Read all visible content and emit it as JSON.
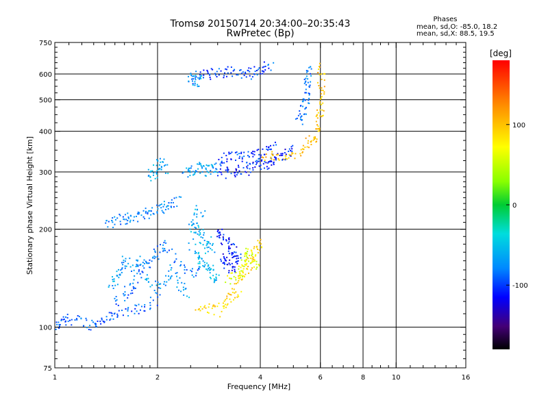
{
  "chart_data": {
    "type": "scatter",
    "title": "Tromsø 20150714 20:34:00–20:35:43",
    "subtitle": "RwPretec (Bp)",
    "phases": {
      "heading": "Phases",
      "line1": "mean, sd,O: -85.0, 18.2",
      "line2": "mean, sd,X:  88.5, 19.5"
    },
    "xlabel": "Frequency [MHz]",
    "ylabel": "Stationary phase Virtual Height [km]",
    "x_scale": "log",
    "y_scale": "log",
    "xlim": [
      1,
      16
    ],
    "ylim": [
      75,
      750
    ],
    "xticks": [
      1,
      2,
      4,
      6,
      8,
      10,
      16
    ],
    "xtick_labels": [
      "1",
      "2",
      "4",
      "6",
      "8",
      "10",
      "16"
    ],
    "yticks": [
      75,
      100,
      200,
      300,
      400,
      500,
      600,
      750
    ],
    "ytick_labels": [
      "75",
      "100",
      "200",
      "300",
      "400",
      "500",
      "600",
      "750"
    ],
    "x_grid": [
      2,
      4,
      6,
      8,
      10
    ],
    "y_grid": [
      100,
      200,
      300,
      400,
      500,
      600
    ],
    "colorbar": {
      "label": "[deg]",
      "range": [
        -180,
        180
      ],
      "ticks": [
        100,
        0,
        -100
      ],
      "tick_labels": [
        "100",
        "0",
        "-100"
      ]
    },
    "echo_traces": [
      {
        "phase": -90,
        "points": [
          [
            1.0,
            100
          ],
          [
            1.05,
            103
          ],
          [
            1.1,
            106
          ],
          [
            1.2,
            104
          ],
          [
            1.28,
            102
          ],
          [
            1.35,
            104
          ],
          [
            1.45,
            108
          ],
          [
            1.55,
            109
          ],
          [
            1.7,
            112
          ],
          [
            1.85,
            116
          ],
          [
            2.0,
            120
          ]
        ]
      },
      {
        "phase": -85,
        "points": [
          [
            1.5,
            118
          ],
          [
            1.6,
            125
          ],
          [
            1.7,
            135
          ],
          [
            1.8,
            148
          ],
          [
            1.9,
            160
          ],
          [
            2.0,
            170
          ],
          [
            2.1,
            180
          ],
          [
            2.3,
            160
          ],
          [
            2.5,
            145
          ],
          [
            2.7,
            150
          ]
        ]
      },
      {
        "phase": -70,
        "points": [
          [
            1.45,
            135
          ],
          [
            1.5,
            140
          ],
          [
            1.55,
            148
          ],
          [
            1.6,
            160
          ],
          [
            1.7,
            150
          ],
          [
            1.8,
            165
          ],
          [
            1.9,
            140
          ],
          [
            2.0,
            130
          ],
          [
            2.1,
            140
          ],
          [
            2.2,
            150
          ],
          [
            2.35,
            135
          ],
          [
            2.5,
            125
          ]
        ]
      },
      {
        "phase": -80,
        "points": [
          [
            1.4,
            205
          ],
          [
            1.5,
            212
          ],
          [
            1.6,
            215
          ],
          [
            1.65,
            218
          ],
          [
            1.8,
            218
          ],
          [
            1.9,
            225
          ],
          [
            2.0,
            230
          ],
          [
            2.1,
            235
          ],
          [
            2.2,
            240
          ],
          [
            2.3,
            248
          ]
        ]
      },
      {
        "phase": -60,
        "points": [
          [
            2.5,
            210
          ],
          [
            2.6,
            200
          ],
          [
            2.7,
            190
          ],
          [
            2.8,
            185
          ],
          [
            2.9,
            175
          ],
          [
            2.6,
            170
          ],
          [
            2.7,
            160
          ],
          [
            2.8,
            150
          ],
          [
            2.9,
            145
          ],
          [
            3.0,
            140
          ],
          [
            2.5,
            180
          ],
          [
            2.6,
            230
          ],
          [
            2.7,
            220
          ]
        ]
      },
      {
        "phase": -110,
        "points": [
          [
            3.0,
            200
          ],
          [
            3.1,
            190
          ],
          [
            3.2,
            180
          ],
          [
            3.3,
            175
          ],
          [
            3.4,
            170
          ],
          [
            3.1,
            160
          ],
          [
            3.2,
            155
          ],
          [
            3.3,
            150
          ],
          [
            3.4,
            165
          ],
          [
            3.5,
            160
          ]
        ]
      },
      {
        "phase": 90,
        "points": [
          [
            2.6,
            112
          ],
          [
            2.8,
            115
          ],
          [
            3.0,
            112
          ],
          [
            3.2,
            118
          ],
          [
            3.3,
            125
          ],
          [
            3.4,
            130
          ],
          [
            3.5,
            140
          ],
          [
            3.6,
            150
          ],
          [
            3.7,
            155
          ],
          [
            3.8,
            165
          ],
          [
            3.9,
            175
          ],
          [
            4.0,
            185
          ]
        ]
      },
      {
        "phase": 60,
        "points": [
          [
            3.2,
            140
          ],
          [
            3.4,
            145
          ],
          [
            3.5,
            150
          ],
          [
            3.6,
            160
          ],
          [
            3.7,
            170
          ],
          [
            3.8,
            160
          ],
          [
            3.9,
            150
          ]
        ]
      },
      {
        "phase": -65,
        "points": [
          [
            1.9,
            290
          ],
          [
            1.95,
            300
          ],
          [
            2.0,
            310
          ],
          [
            2.05,
            320
          ],
          [
            2.1,
            300
          ]
        ]
      },
      {
        "phase": -70,
        "points": [
          [
            2.4,
            295
          ],
          [
            2.5,
            300
          ],
          [
            2.6,
            305
          ],
          [
            2.7,
            310
          ],
          [
            2.8,
            300
          ],
          [
            2.9,
            310
          ],
          [
            3.0,
            305
          ]
        ]
      },
      {
        "phase": -110,
        "points": [
          [
            3.0,
            295
          ],
          [
            3.2,
            300
          ],
          [
            3.4,
            302
          ],
          [
            3.6,
            305
          ],
          [
            3.8,
            308
          ],
          [
            4.0,
            312
          ],
          [
            4.2,
            318
          ],
          [
            4.4,
            325
          ],
          [
            4.6,
            335
          ],
          [
            4.8,
            345
          ],
          [
            5.0,
            355
          ]
        ]
      },
      {
        "phase": -100,
        "points": [
          [
            3.0,
            320
          ],
          [
            3.2,
            330
          ],
          [
            3.4,
            340
          ],
          [
            3.6,
            330
          ],
          [
            3.8,
            335
          ],
          [
            4.0,
            340
          ],
          [
            4.2,
            350
          ],
          [
            4.4,
            360
          ]
        ]
      },
      {
        "phase": 100,
        "points": [
          [
            4.0,
            340
          ],
          [
            4.4,
            335
          ],
          [
            4.8,
            338
          ],
          [
            5.2,
            345
          ],
          [
            5.5,
            365
          ],
          [
            5.7,
            380
          ],
          [
            5.85,
            400
          ],
          [
            5.95,
            430
          ],
          [
            6.0,
            470
          ],
          [
            6.02,
            520
          ],
          [
            6.03,
            580
          ],
          [
            6.04,
            640
          ]
        ]
      },
      {
        "phase": -85,
        "points": [
          [
            5.2,
            420
          ],
          [
            5.3,
            450
          ],
          [
            5.4,
            480
          ],
          [
            5.45,
            510
          ],
          [
            5.5,
            550
          ],
          [
            5.52,
            590
          ],
          [
            5.55,
            630
          ]
        ]
      },
      {
        "phase": -95,
        "points": [
          [
            2.5,
            580
          ],
          [
            2.6,
            590
          ],
          [
            2.8,
            600
          ],
          [
            3.0,
            605
          ],
          [
            3.2,
            612
          ],
          [
            3.5,
            605
          ],
          [
            3.7,
            600
          ],
          [
            3.9,
            615
          ],
          [
            4.1,
            625
          ],
          [
            4.3,
            635
          ]
        ]
      },
      {
        "phase": -60,
        "points": [
          [
            2.5,
            580
          ],
          [
            2.6,
            570
          ],
          [
            2.65,
            575
          ]
        ]
      }
    ]
  }
}
